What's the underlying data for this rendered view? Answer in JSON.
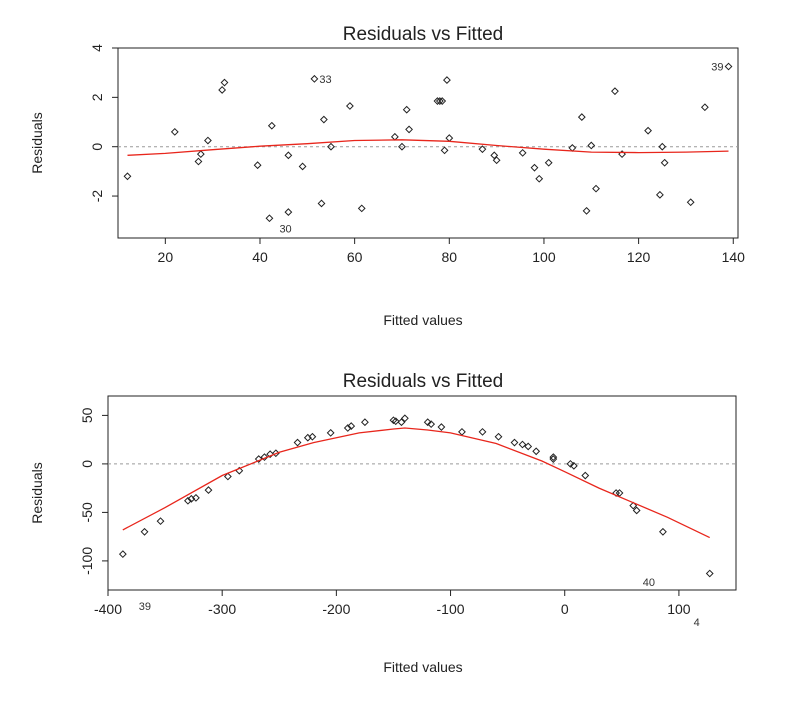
{
  "chart_data": [
    {
      "type": "scatter",
      "title": "Residuals vs Fitted",
      "xlabel": "Fitted values",
      "ylabel": "Residuals",
      "xlim": [
        10,
        141
      ],
      "ylim": [
        -3.7,
        4
      ],
      "xticks": [
        20,
        40,
        60,
        80,
        100,
        120,
        140
      ],
      "yticks": [
        -2,
        0,
        2,
        4
      ],
      "reference_line_y": 0,
      "x": [
        12,
        22,
        27,
        27.5,
        29,
        32,
        32.5,
        39.5,
        42,
        42.5,
        46,
        46,
        49,
        51.5,
        53,
        53.5,
        55,
        59,
        61.5,
        68.5,
        70,
        71,
        71.5,
        77.5,
        78,
        78.5,
        79,
        79.5,
        80,
        87,
        89.5,
        90,
        95.5,
        98,
        99,
        101,
        106,
        108,
        109,
        110,
        111,
        115,
        116.5,
        122,
        124.5,
        125,
        125.5,
        131,
        134,
        139
      ],
      "y": [
        -1.2,
        0.6,
        -0.6,
        -0.3,
        0.25,
        2.3,
        2.6,
        -0.75,
        -2.9,
        0.85,
        -0.35,
        -2.65,
        -0.8,
        2.75,
        -2.3,
        1.1,
        0,
        1.65,
        -2.5,
        0.4,
        0,
        1.5,
        0.7,
        1.85,
        1.85,
        1.85,
        -0.15,
        2.7,
        0.35,
        -0.1,
        -0.35,
        -0.55,
        -0.25,
        -0.85,
        -1.3,
        -0.65,
        -0.05,
        1.2,
        -2.6,
        0.05,
        -1.7,
        2.25,
        -0.3,
        0.65,
        -1.95,
        0,
        -0.65,
        -2.25,
        1.6,
        3.25
      ],
      "smoother": {
        "x": [
          12,
          20,
          30,
          40,
          50,
          60,
          70,
          80,
          90,
          100,
          110,
          120,
          130,
          139
        ],
        "y": [
          -0.35,
          -0.27,
          -0.12,
          0.02,
          0.12,
          0.25,
          0.28,
          0.22,
          0.05,
          -0.1,
          -0.22,
          -0.24,
          -0.22,
          -0.18
        ]
      },
      "point_labels": [
        {
          "text": "33",
          "x": 51.5,
          "y": 2.75,
          "side": "right"
        },
        {
          "text": "39",
          "x": 139,
          "y": 3.25,
          "side": "left"
        },
        {
          "text": "30",
          "x": 42,
          "y": -2.9,
          "side": "below"
        }
      ]
    },
    {
      "type": "scatter",
      "title": "Residuals vs Fitted",
      "xlabel": "Fitted values",
      "ylabel": "Residuals",
      "xlim": [
        -400,
        150
      ],
      "ylim": [
        -130,
        70
      ],
      "xticks": [
        -400,
        -300,
        -200,
        -100,
        0,
        100
      ],
      "yticks": [
        -100,
        -50,
        0,
        50
      ],
      "reference_line_y": 0,
      "x": [
        -387,
        -368,
        -354,
        -330,
        -327,
        -323,
        -312,
        -295,
        -285,
        -268,
        -263,
        -258,
        -253,
        -234,
        -225,
        -221,
        -205,
        -190,
        -187,
        -175,
        -150,
        -148,
        -143,
        -140,
        -120,
        -117,
        -108,
        -90,
        -72,
        -58,
        -44,
        -37,
        -32,
        -25,
        -10,
        -10,
        5,
        8,
        18,
        45,
        48,
        60,
        63,
        86,
        127
      ],
      "y": [
        -93,
        -70,
        -59,
        -38,
        -36,
        -35,
        -27,
        -13,
        -7,
        5,
        7,
        10,
        11,
        22,
        27,
        28,
        32,
        37,
        39,
        43,
        45,
        44,
        43,
        47,
        43,
        41,
        38,
        33,
        33,
        28,
        22,
        20,
        18,
        13,
        7,
        5,
        0,
        -2,
        -12,
        -30,
        -30,
        -43,
        -48,
        -70,
        -113
      ],
      "smoother": {
        "x": [
          -387,
          -350,
          -300,
          -250,
          -220,
          -180,
          -150,
          -140,
          -120,
          -100,
          -60,
          -20,
          0,
          30,
          60,
          90,
          127
        ],
        "y": [
          -68,
          -45,
          -12,
          12,
          22,
          32,
          36,
          37,
          35,
          32,
          21,
          3,
          -8,
          -25,
          -40,
          -55,
          -76
        ]
      },
      "point_labels": [
        {
          "text": "39",
          "x": -387,
          "y": -93,
          "side": "farbelow"
        },
        {
          "text": "40",
          "x": 86,
          "y": -70,
          "side": "farbelow-left"
        },
        {
          "text": "4",
          "x": 127,
          "y": -113,
          "side": "farbelow-left"
        }
      ]
    }
  ]
}
